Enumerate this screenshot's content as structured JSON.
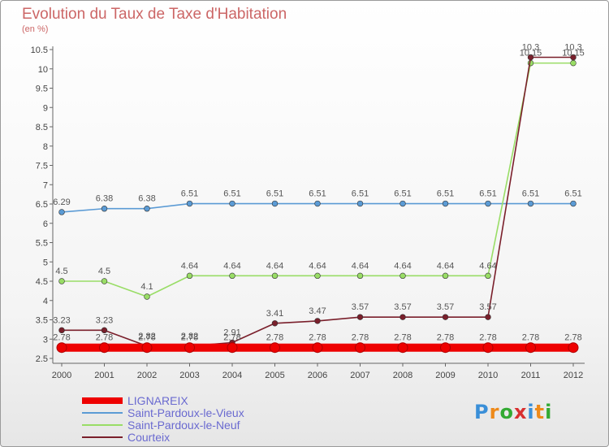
{
  "chart_data": {
    "type": "line",
    "title": "Evolution du Taux de Taxe d'Habitation",
    "subtitle": "(en %)",
    "x": [
      "2000",
      "2001",
      "2002",
      "2003",
      "2004",
      "2005",
      "2006",
      "2007",
      "2008",
      "2009",
      "2010",
      "2011",
      "2012"
    ],
    "ylim": [
      2.5,
      10.5
    ],
    "yticks": [
      "2.5",
      "3",
      "3.5",
      "4",
      "4.5",
      "5",
      "5.5",
      "6",
      "6.5",
      "7",
      "7.5",
      "8",
      "8.5",
      "9",
      "9.5",
      "10",
      "10.5"
    ],
    "grid": false,
    "legend_position": "bottom-left",
    "series": [
      {
        "name": "LIGNAREIX",
        "color": "#ee0000",
        "values": [
          2.78,
          2.78,
          2.78,
          2.78,
          2.78,
          2.78,
          2.78,
          2.78,
          2.78,
          2.78,
          2.78,
          2.78,
          2.78
        ],
        "labels": [
          "2.78",
          "2.78",
          "2.78",
          "2.78",
          "2.78",
          "2.78",
          "2.78",
          "2.78",
          "2.78",
          "2.78",
          "2.78",
          "2.78",
          "2.78"
        ]
      },
      {
        "name": "Saint-Pardoux-le-Vieux",
        "color": "#5b9bd5",
        "values": [
          6.29,
          6.38,
          6.38,
          6.51,
          6.51,
          6.51,
          6.51,
          6.51,
          6.51,
          6.51,
          6.51,
          6.51,
          6.51
        ],
        "labels": [
          "6.29",
          "6.38",
          "6.38",
          "6.51",
          "6.51",
          "6.51",
          "6.51",
          "6.51",
          "6.51",
          "6.51",
          "6.51",
          "6.51",
          "6.51"
        ]
      },
      {
        "name": "Saint-Pardoux-le-Neuf",
        "color": "#99dd66",
        "values": [
          4.5,
          4.5,
          4.1,
          4.64,
          4.64,
          4.64,
          4.64,
          4.64,
          4.64,
          4.64,
          4.64,
          10.15,
          10.15
        ],
        "labels": [
          "4.5",
          "4.5",
          "4.1",
          "4.64",
          "4.64",
          "4.64",
          "4.64",
          "4.64",
          "4.64",
          "4.64",
          "4.64",
          "10.15",
          "10.15"
        ]
      },
      {
        "name": "Courteix",
        "color": "#7a1f2b",
        "values": [
          3.23,
          3.23,
          2.82,
          2.82,
          2.91,
          3.41,
          3.47,
          3.57,
          3.57,
          3.57,
          3.57,
          10.3,
          10.3
        ],
        "labels": [
          "3.23",
          "3.23",
          "2.82",
          "2.82",
          "2.91",
          "3.41",
          "3.47",
          "3.57",
          "3.57",
          "3.57",
          "3.57",
          "10.3",
          "10.3"
        ]
      }
    ]
  },
  "logo": {
    "letters": [
      "P",
      "r",
      "o",
      "x",
      "i",
      "t",
      "i"
    ],
    "colors": [
      "#3a8fd8",
      "#ee8a1a",
      "#33aa33",
      "#d83030",
      "#3a8fd8",
      "#ee8a1a",
      "#33aa33"
    ]
  }
}
